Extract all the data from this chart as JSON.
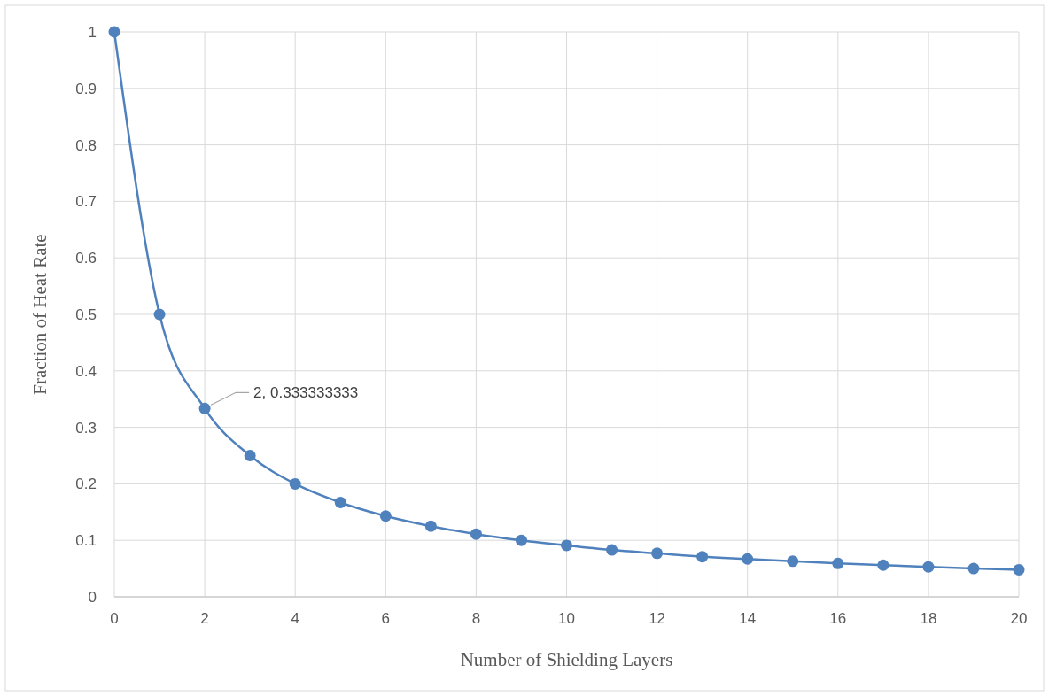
{
  "chart_data": {
    "type": "line",
    "xlabel": "Number of Shielding Layers",
    "ylabel": "Fraction of Heat Rate",
    "x": [
      0,
      1,
      2,
      3,
      4,
      5,
      6,
      7,
      8,
      9,
      10,
      11,
      12,
      13,
      14,
      15,
      16,
      17,
      18,
      19,
      20
    ],
    "series": [
      {
        "color": "#4f81bd",
        "values": [
          1,
          0.5,
          0.333333333,
          0.25,
          0.2,
          0.167,
          0.143,
          0.125,
          0.111,
          0.1,
          0.091,
          0.083,
          0.077,
          0.071,
          0.067,
          0.063,
          0.059,
          0.056,
          0.053,
          0.05,
          0.048
        ]
      }
    ],
    "xlim": [
      0,
      20
    ],
    "xticks": [
      0,
      2,
      4,
      6,
      8,
      10,
      12,
      14,
      16,
      18,
      20
    ],
    "ylim": [
      0,
      1
    ],
    "yticks": [
      0,
      0.1,
      0.2,
      0.3,
      0.4,
      0.5,
      0.6,
      0.7,
      0.8,
      0.9,
      1
    ],
    "grid": true,
    "marker": "circle",
    "line_style": "solid",
    "annotations": [
      {
        "text": "2, 0.333333333",
        "x": 2,
        "y": 0.333333333
      }
    ]
  }
}
